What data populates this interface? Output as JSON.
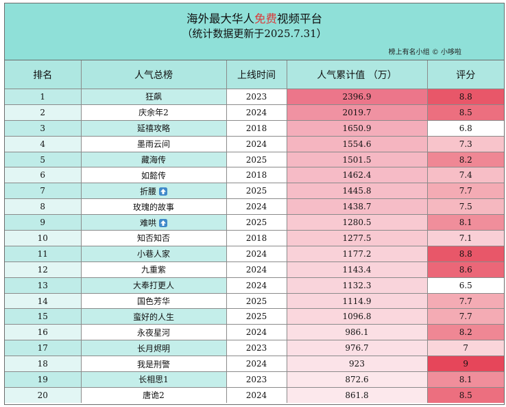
{
  "header": {
    "title_pre": "海外最大华人",
    "title_highlight": "免费",
    "title_post": "视频平台",
    "subtitle": "（统计数据更新于2025.7.31）",
    "credit": "榜上有名小组 © 小哆啦"
  },
  "columns": [
    "排名",
    "人气总榜",
    "上线时间",
    "人气累计值 （万）",
    "评分"
  ],
  "colors": {
    "header_bg": "#8fe0d8",
    "column_header_bg": "#aee7e1",
    "rank_text": "#b21e1e",
    "title_highlight": "#d93a3a",
    "up_icon": "#3f89c9"
  },
  "rows": [
    {
      "rank": "1",
      "title": "狂飙",
      "year": "2023",
      "value": "2396.9",
      "score": "8.8",
      "up_icon": false
    },
    {
      "rank": "2",
      "title": "庆余年2",
      "year": "2024",
      "value": "2019.7",
      "score": "8.5",
      "up_icon": false
    },
    {
      "rank": "3",
      "title": "延禧攻略",
      "year": "2018",
      "value": "1650.9",
      "score": "6.8",
      "up_icon": false
    },
    {
      "rank": "4",
      "title": "墨雨云间",
      "year": "2024",
      "value": "1554.6",
      "score": "7.3",
      "up_icon": false
    },
    {
      "rank": "5",
      "title": "藏海传",
      "year": "2025",
      "value": "1501.5",
      "score": "8.2",
      "up_icon": false
    },
    {
      "rank": "6",
      "title": "如懿传",
      "year": "2018",
      "value": "1462.4",
      "score": "7.4",
      "up_icon": false
    },
    {
      "rank": "7",
      "title": "折腰",
      "year": "2025",
      "value": "1445.8",
      "score": "7.7",
      "up_icon": true
    },
    {
      "rank": "8",
      "title": "玫瑰的故事",
      "year": "2024",
      "value": "1438.7",
      "score": "7.5",
      "up_icon": false
    },
    {
      "rank": "9",
      "title": "难哄",
      "year": "2025",
      "value": "1280.5",
      "score": "8.1",
      "up_icon": true
    },
    {
      "rank": "10",
      "title": "知否知否",
      "year": "2018",
      "value": "1277.5",
      "score": "7.1",
      "up_icon": false
    },
    {
      "rank": "11",
      "title": "小巷人家",
      "year": "2024",
      "value": "1177.2",
      "score": "8.8",
      "up_icon": false
    },
    {
      "rank": "12",
      "title": "九重紫",
      "year": "2024",
      "value": "1143.4",
      "score": "8.6",
      "up_icon": false
    },
    {
      "rank": "13",
      "title": "大奉打更人",
      "year": "2024",
      "value": "1132.3",
      "score": "6.5",
      "up_icon": false
    },
    {
      "rank": "14",
      "title": "国色芳华",
      "year": "2025",
      "value": "1114.9",
      "score": "7.7",
      "up_icon": false
    },
    {
      "rank": "15",
      "title": "蛮好的人生",
      "year": "2025",
      "value": "1096.8",
      "score": "7.7",
      "up_icon": false
    },
    {
      "rank": "16",
      "title": "永夜星河",
      "year": "2024",
      "value": "986.1",
      "score": "8.2",
      "up_icon": false
    },
    {
      "rank": "17",
      "title": "长月烬明",
      "year": "2023",
      "value": "976.7",
      "score": "7",
      "up_icon": false
    },
    {
      "rank": "18",
      "title": "我是刑警",
      "year": "2024",
      "value": "923",
      "score": "9",
      "up_icon": false
    },
    {
      "rank": "19",
      "title": "长相思1",
      "year": "2023",
      "value": "872.6",
      "score": "8.1",
      "up_icon": false
    },
    {
      "rank": "20",
      "title": "唐诡2",
      "year": "2024",
      "value": "861.8",
      "score": "8.5",
      "up_icon": false
    }
  ]
}
